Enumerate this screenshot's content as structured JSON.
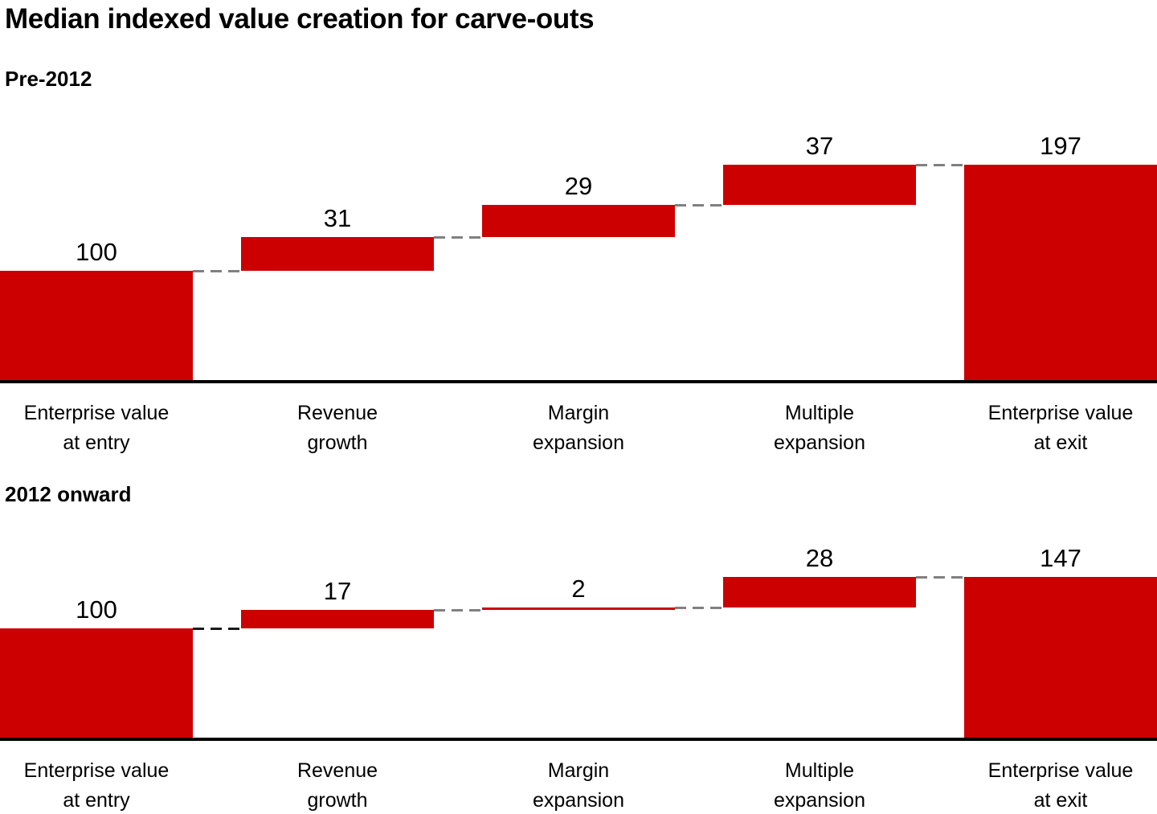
{
  "title": "Median indexed value creation for carve-outs",
  "colors": {
    "bar_red": "#cc0000",
    "connector_gray": "#808080",
    "connector_dark": "#1a1a1a",
    "axis_black": "#000000",
    "background": "#ffffff"
  },
  "chart_data": [
    {
      "type": "bar",
      "subtype": "waterfall",
      "title": "Pre-2012",
      "categories": [
        "Enterprise value at entry",
        "Revenue growth",
        "Margin expansion",
        "Multiple expansion",
        "Enterprise value at exit"
      ],
      "category_lines": [
        [
          "Enterprise value",
          "at entry"
        ],
        [
          "Revenue",
          "growth"
        ],
        [
          "Margin",
          "expansion"
        ],
        [
          "Multiple",
          "expansion"
        ],
        [
          "Enterprise value",
          "at exit"
        ]
      ],
      "values": [
        100,
        31,
        29,
        37,
        197
      ],
      "roles": [
        "start",
        "delta",
        "delta",
        "delta",
        "total"
      ],
      "data_labels": [
        "100",
        "31",
        "29",
        "37",
        "197"
      ],
      "connector_levels": [
        100,
        131,
        160,
        197
      ],
      "connector_styles": [
        "gray",
        "gray",
        "gray",
        "gray"
      ],
      "ylim": [
        0,
        210
      ],
      "grid": false,
      "legend": false
    },
    {
      "type": "bar",
      "subtype": "waterfall",
      "title": "2012 onward",
      "categories": [
        "Enterprise value at entry",
        "Revenue growth",
        "Margin expansion",
        "Multiple expansion",
        "Enterprise value at exit"
      ],
      "category_lines": [
        [
          "Enterprise value",
          "at entry"
        ],
        [
          "Revenue",
          "growth"
        ],
        [
          "Margin",
          "expansion"
        ],
        [
          "Multiple",
          "expansion"
        ],
        [
          "Enterprise value",
          "at exit"
        ]
      ],
      "values": [
        100,
        17,
        2,
        28,
        147
      ],
      "roles": [
        "start",
        "delta",
        "delta",
        "delta",
        "total"
      ],
      "data_labels": [
        "100",
        "17",
        "2",
        "28",
        "147"
      ],
      "connector_levels": [
        100,
        117,
        119,
        147
      ],
      "connector_styles": [
        "dark",
        "gray",
        "gray",
        "gray"
      ],
      "ylim": [
        0,
        210
      ],
      "grid": false,
      "legend": false
    }
  ]
}
